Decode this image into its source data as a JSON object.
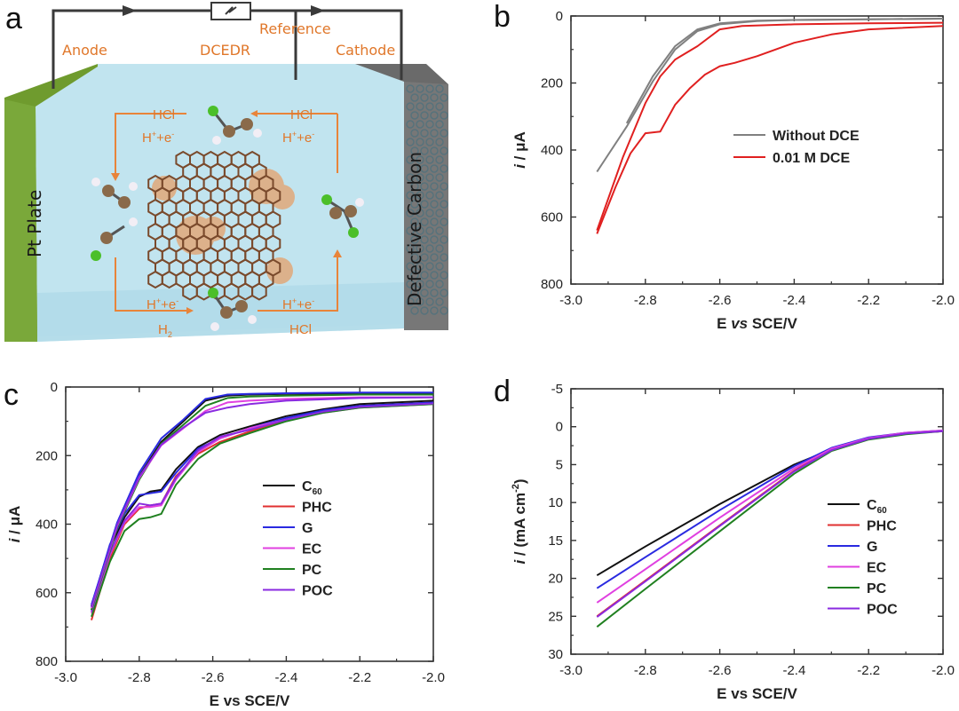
{
  "panel_letters": [
    "a",
    "b",
    "c",
    "d"
  ],
  "schematic": {
    "anode": "Anode",
    "dcedr": "DCEDR",
    "reference": "Reference",
    "cathode": "Cathode",
    "pt_plate": "Pt Plate",
    "defective_carbon": "Defective Carbon",
    "hcl": "HCl",
    "h_e_text": "H",
    "h_e_text_tail": "+e",
    "h2": "H",
    "colors": {
      "anode_plate": "#6f9b2e",
      "cathode_plate": "#707070",
      "electrolyte": "#bfe3ee",
      "arrows": "#e8843a",
      "labels": "#e0772a",
      "carbon": "#7a4a2c",
      "defect": "#e6a06a"
    }
  },
  "chart_data": [
    {
      "type": "line",
      "panel": "b",
      "xlabel": "E vs SCE/V",
      "ylabel": "i / μA",
      "xlim": [
        -3.0,
        -2.0
      ],
      "ylim": [
        0,
        800
      ],
      "y_inverted": true,
      "xticks": [
        "-3.0",
        "-2.8",
        "-2.6",
        "-2.4",
        "-2.2",
        "-2.0"
      ],
      "yticks": [
        "0",
        "200",
        "400",
        "600",
        "800"
      ],
      "legend": [
        "Without DCE",
        "0.01 M DCE"
      ],
      "legend_position": "center-right",
      "series": [
        {
          "name": "Without DCE",
          "color": "#808080",
          "x": [
            -2.93,
            -2.85,
            -2.78,
            -2.72,
            -2.66,
            -2.6,
            -2.5,
            -2.4,
            -2.2,
            -2.0
          ],
          "y": [
            465,
            330,
            195,
            100,
            45,
            25,
            15,
            12,
            10,
            8
          ]
        },
        {
          "name": "Without DCE",
          "color": "#808080",
          "x": [
            -2.85,
            -2.78,
            -2.72,
            -2.66,
            -2.6,
            -2.5,
            -2.4,
            -2.2,
            -2.0
          ],
          "y": [
            320,
            180,
            90,
            40,
            22,
            14,
            12,
            10,
            8
          ]
        },
        {
          "name": "0.01 M DCE",
          "color": "#e02020",
          "x": [
            -2.93,
            -2.88,
            -2.84,
            -2.8,
            -2.76,
            -2.72,
            -2.68,
            -2.64,
            -2.6,
            -2.56,
            -2.5,
            -2.4,
            -2.3,
            -2.2,
            -2.0
          ],
          "y": [
            650,
            510,
            410,
            350,
            345,
            265,
            215,
            175,
            150,
            140,
            120,
            80,
            55,
            40,
            30
          ]
        },
        {
          "name": "0.01 M DCE",
          "color": "#e02020",
          "x": [
            -2.93,
            -2.86,
            -2.8,
            -2.76,
            -2.72,
            -2.66,
            -2.6,
            -2.54,
            -2.4,
            -2.2,
            -2.0
          ],
          "y": [
            640,
            420,
            260,
            180,
            130,
            90,
            40,
            30,
            25,
            22,
            20
          ]
        }
      ]
    },
    {
      "type": "line",
      "panel": "c",
      "xlabel": "E vs SCE/V",
      "ylabel": "i / μA",
      "xlim": [
        -3.0,
        -2.0
      ],
      "ylim": [
        0,
        800
      ],
      "y_inverted": true,
      "xticks": [
        "-3.0",
        "-2.8",
        "-2.6",
        "-2.4",
        "-2.2",
        "-2.0"
      ],
      "yticks": [
        "0",
        "200",
        "400",
        "600",
        "800"
      ],
      "legend": [
        "C60",
        "PHC",
        "G",
        "EC",
        "PC",
        "POC"
      ],
      "legend_position": "center-right",
      "series": [
        {
          "name": "C60",
          "color": "#111111",
          "x": [
            -2.93,
            -2.88,
            -2.84,
            -2.8,
            -2.77,
            -2.74,
            -2.7,
            -2.64,
            -2.58,
            -2.5,
            -2.4,
            -2.3,
            -2.2,
            -2.0
          ],
          "y": [
            650,
            470,
            380,
            320,
            305,
            300,
            240,
            175,
            140,
            115,
            85,
            65,
            50,
            40
          ]
        },
        {
          "name": "PHC",
          "color": "#e03030",
          "x": [
            -2.93,
            -2.88,
            -2.84,
            -2.8,
            -2.77,
            -2.74,
            -2.7,
            -2.64,
            -2.58,
            -2.5,
            -2.4,
            -2.3,
            -2.2,
            -2.0
          ],
          "y": [
            680,
            500,
            400,
            355,
            345,
            340,
            260,
            195,
            160,
            130,
            95,
            70,
            55,
            45
          ]
        },
        {
          "name": "G",
          "color": "#2a2ae0",
          "x": [
            -2.93,
            -2.88,
            -2.84,
            -2.8,
            -2.77,
            -2.74,
            -2.7,
            -2.64,
            -2.58,
            -2.5,
            -2.4,
            -2.3,
            -2.2,
            -2.0
          ],
          "y": [
            640,
            460,
            370,
            315,
            310,
            305,
            250,
            180,
            150,
            120,
            90,
            68,
            55,
            45
          ]
        },
        {
          "name": "EC",
          "color": "#e040e0",
          "x": [
            -2.93,
            -2.88,
            -2.84,
            -2.8,
            -2.77,
            -2.74,
            -2.7,
            -2.64,
            -2.58,
            -2.5,
            -2.4,
            -2.3,
            -2.2,
            -2.0
          ],
          "y": [
            660,
            490,
            395,
            350,
            350,
            345,
            270,
            190,
            150,
            120,
            95,
            75,
            60,
            50
          ]
        },
        {
          "name": "PC",
          "color": "#208020",
          "x": [
            -2.93,
            -2.88,
            -2.84,
            -2.8,
            -2.77,
            -2.74,
            -2.7,
            -2.64,
            -2.58,
            -2.5,
            -2.4,
            -2.3,
            -2.2,
            -2.0
          ],
          "y": [
            670,
            510,
            420,
            385,
            380,
            370,
            285,
            210,
            165,
            135,
            100,
            75,
            60,
            50
          ]
        },
        {
          "name": "POC",
          "color": "#8a2ae0",
          "x": [
            -2.93,
            -2.88,
            -2.84,
            -2.8,
            -2.77,
            -2.74,
            -2.7,
            -2.64,
            -2.58,
            -2.5,
            -2.4,
            -2.3,
            -2.2,
            -2.0
          ],
          "y": [
            655,
            485,
            390,
            340,
            345,
            340,
            265,
            185,
            145,
            125,
            95,
            72,
            58,
            48
          ]
        },
        {
          "name": "C60",
          "color": "#111111",
          "x": [
            -2.93,
            -2.86,
            -2.8,
            -2.74,
            -2.68,
            -2.62,
            -2.56,
            -2.5,
            -2.4,
            -2.2,
            -2.0
          ],
          "y": [
            640,
            400,
            260,
            160,
            100,
            40,
            25,
            22,
            20,
            18,
            18
          ]
        },
        {
          "name": "G",
          "color": "#2a2ae0",
          "x": [
            -2.93,
            -2.86,
            -2.8,
            -2.74,
            -2.68,
            -2.62,
            -2.56,
            -2.5,
            -2.4,
            -2.2,
            -2.0
          ],
          "y": [
            635,
            395,
            250,
            150,
            95,
            35,
            22,
            20,
            18,
            16,
            16
          ]
        },
        {
          "name": "PC",
          "color": "#208020",
          "x": [
            -2.93,
            -2.86,
            -2.8,
            -2.74,
            -2.68,
            -2.62,
            -2.56,
            -2.5,
            -2.4,
            -2.2,
            -2.0
          ],
          "y": [
            650,
            410,
            270,
            165,
            110,
            55,
            32,
            28,
            25,
            22,
            22
          ]
        },
        {
          "name": "EC",
          "color": "#e040e0",
          "x": [
            -2.93,
            -2.86,
            -2.8,
            -2.74,
            -2.68,
            -2.62,
            -2.56,
            -2.5,
            -2.4,
            -2.2,
            -2.0
          ],
          "y": [
            645,
            405,
            265,
            170,
            120,
            70,
            45,
            40,
            35,
            30,
            30
          ]
        },
        {
          "name": "POC",
          "color": "#8a2ae0",
          "x": [
            -2.93,
            -2.86,
            -2.8,
            -2.74,
            -2.68,
            -2.62,
            -2.56,
            -2.5,
            -2.4,
            -2.2,
            -2.0
          ],
          "y": [
            642,
            402,
            262,
            168,
            118,
            75,
            60,
            50,
            40,
            32,
            30
          ]
        }
      ]
    },
    {
      "type": "line",
      "panel": "d",
      "xlabel": "E vs SCE/V",
      "ylabel": "i / (mA cm-2)",
      "xlim": [
        -3.0,
        -2.0
      ],
      "ylim": [
        -5,
        30
      ],
      "y_inverted": true,
      "xticks": [
        "-3.0",
        "-2.8",
        "-2.6",
        "-2.4",
        "-2.2",
        "-2.0"
      ],
      "yticks": [
        "-5",
        "0",
        "5",
        "10",
        "15",
        "20",
        "25",
        "30"
      ],
      "legend": [
        "C60",
        "PHC",
        "G",
        "EC",
        "PC",
        "POC"
      ],
      "legend_position": "center-right",
      "series": [
        {
          "name": "C60",
          "color": "#111111",
          "x": [
            -2.93,
            -2.8,
            -2.6,
            -2.4,
            -2.3,
            -2.2,
            -2.1,
            -2.0
          ],
          "y": [
            19.6,
            15.8,
            10.2,
            5.0,
            3.0,
            1.6,
            0.9,
            0.6
          ]
        },
        {
          "name": "PHC",
          "color": "#e03030",
          "x": [
            -2.93,
            -2.8,
            -2.6,
            -2.4,
            -2.3,
            -2.2,
            -2.1,
            -2.0
          ],
          "y": [
            25.0,
            20.3,
            13.0,
            5.8,
            3.0,
            1.6,
            0.9,
            0.6
          ]
        },
        {
          "name": "G",
          "color": "#2a2ae0",
          "x": [
            -2.93,
            -2.8,
            -2.6,
            -2.4,
            -2.3,
            -2.2,
            -2.1,
            -2.0
          ],
          "y": [
            21.3,
            17.2,
            11.0,
            5.2,
            2.8,
            1.4,
            0.8,
            0.5
          ]
        },
        {
          "name": "EC",
          "color": "#e040e0",
          "x": [
            -2.93,
            -2.8,
            -2.6,
            -2.4,
            -2.3,
            -2.2,
            -2.1,
            -2.0
          ],
          "y": [
            23.2,
            18.8,
            12.0,
            5.5,
            2.9,
            1.5,
            0.8,
            0.5
          ]
        },
        {
          "name": "PC",
          "color": "#208020",
          "x": [
            -2.93,
            -2.8,
            -2.6,
            -2.4,
            -2.3,
            -2.2,
            -2.1,
            -2.0
          ],
          "y": [
            26.4,
            21.4,
            13.8,
            6.2,
            3.2,
            1.7,
            1.0,
            0.6
          ]
        },
        {
          "name": "POC",
          "color": "#8a2ae0",
          "x": [
            -2.93,
            -2.8,
            -2.6,
            -2.4,
            -2.3,
            -2.2,
            -2.1,
            -2.0
          ],
          "y": [
            25.1,
            20.4,
            13.1,
            5.9,
            3.1,
            1.6,
            0.9,
            0.6
          ]
        }
      ]
    }
  ]
}
